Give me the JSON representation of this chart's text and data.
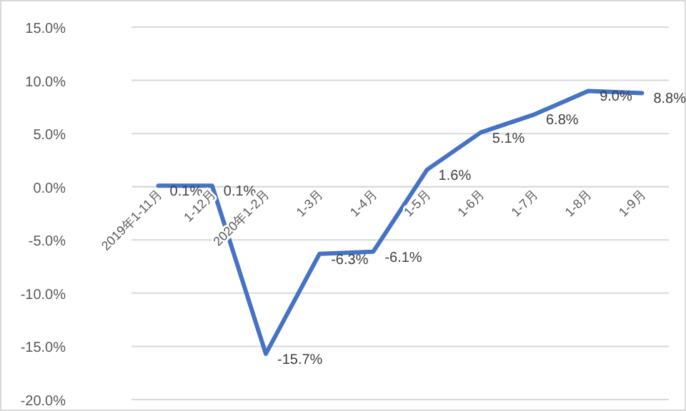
{
  "chart_data": {
    "type": "line",
    "categories": [
      "2019年1-11月",
      "1-12月",
      "2020年1-2月",
      "1-3月",
      "1-4月",
      "1-5月",
      "1-6月",
      "1-7月",
      "1-8月",
      "1-9月"
    ],
    "series": [
      {
        "color": "#4472c4",
        "values": [
          0.1,
          0.1,
          -15.7,
          -6.3,
          -6.1,
          1.6,
          5.1,
          6.8,
          9.0,
          8.8
        ],
        "value_labels": [
          "0.1%",
          "0.1%",
          "-15.7%",
          "-6.3%",
          "-6.1%",
          "1.6%",
          "5.1%",
          "6.8%",
          "9.0%",
          "8.8%"
        ]
      }
    ],
    "ylim": [
      -20,
      15
    ],
    "yticks": [
      {
        "value": -20,
        "label": "-20.0%"
      },
      {
        "value": -15,
        "label": "-15.0%"
      },
      {
        "value": -10,
        "label": "-10.0%"
      },
      {
        "value": -5,
        "label": "-5.0%"
      },
      {
        "value": 0,
        "label": "0.0%"
      },
      {
        "value": 5,
        "label": "5.0%"
      },
      {
        "value": 10,
        "label": "10.0%"
      },
      {
        "value": 15,
        "label": "15.0%"
      }
    ],
    "grid": "y",
    "marker": "none",
    "line_style": "solid"
  }
}
